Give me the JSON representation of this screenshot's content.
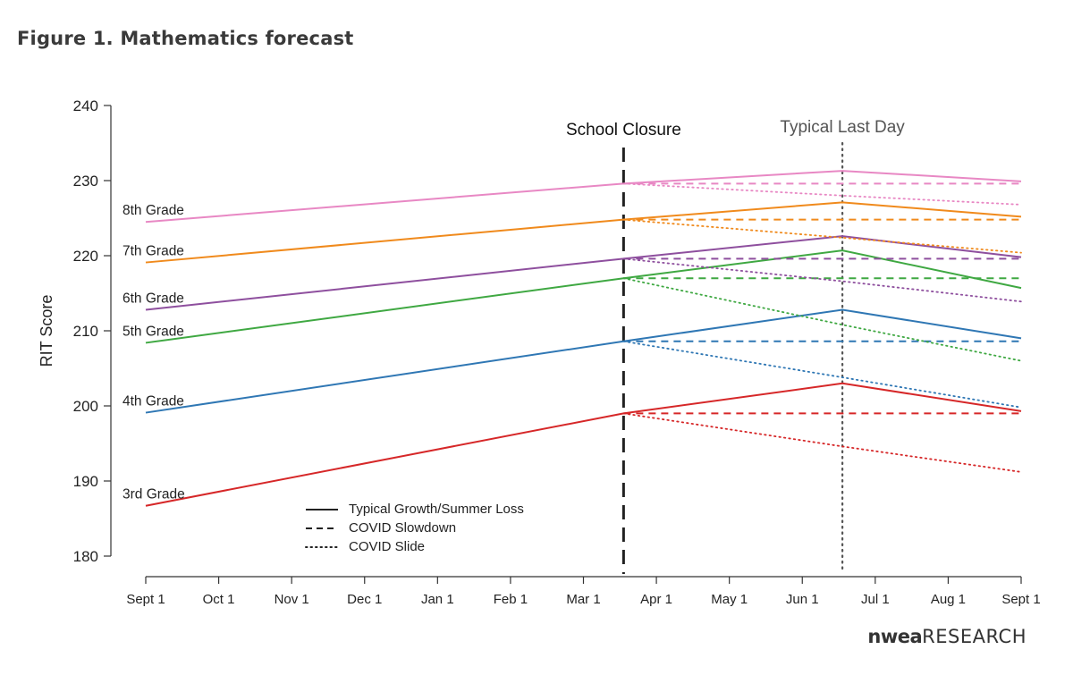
{
  "figure_title": "Figure 1. Mathematics forecast",
  "brand": {
    "logo": "nwea",
    "word": "RESEARCH"
  },
  "colors": {
    "grade_3": "#d62728",
    "grade_4": "#2f77b4",
    "grade_5": "#3fa842",
    "grade_6": "#8e4f9e",
    "grade_7": "#f08a1c",
    "grade_8": "#e888c4",
    "axis": "#333333",
    "marker": "#222222"
  },
  "legend": [
    {
      "label": "Typical Growth/Summer Loss",
      "style": "solid"
    },
    {
      "label": "COVID Slowdown",
      "style": "dashed"
    },
    {
      "label": "COVID Slide",
      "style": "dotted"
    }
  ],
  "chart_data": {
    "type": "line",
    "ylabel": "RIT Score",
    "xlabel": "",
    "ylim": [
      180,
      240
    ],
    "yticks": [
      180,
      190,
      200,
      210,
      220,
      230,
      240
    ],
    "x_categories": [
      "Sept 1",
      "Oct 1",
      "Nov 1",
      "Dec 1",
      "Jan 1",
      "Feb 1",
      "Mar 1",
      "Apr 1",
      "May 1",
      "Jun 1",
      "Jul 1",
      "Aug 1",
      "Sept 1"
    ],
    "x_domain": [
      0,
      12
    ],
    "vertical_markers": [
      {
        "label": "School Closure",
        "x": 6.55,
        "style": "dashed"
      },
      {
        "label": "Typical Last Day",
        "x": 9.55,
        "style": "dotted"
      }
    ],
    "series": [
      {
        "name": "3rd Grade",
        "color_key": "grade_3",
        "typical": [
          [
            0,
            186.7
          ],
          [
            6.55,
            199.0
          ],
          [
            9.55,
            203.0
          ],
          [
            12,
            199.3
          ]
        ],
        "slowdown": [
          [
            6.55,
            199.0
          ],
          [
            12,
            199.0
          ]
        ],
        "slide": [
          [
            6.55,
            199.0
          ],
          [
            9.55,
            194.6
          ],
          [
            12,
            191.2
          ]
        ]
      },
      {
        "name": "4th Grade",
        "color_key": "grade_4",
        "typical": [
          [
            0,
            199.1
          ],
          [
            6.55,
            208.6
          ],
          [
            9.55,
            212.8
          ],
          [
            12,
            209.0
          ]
        ],
        "slowdown": [
          [
            6.55,
            208.6
          ],
          [
            12,
            208.6
          ]
        ],
        "slide": [
          [
            6.55,
            208.6
          ],
          [
            9.55,
            203.8
          ],
          [
            12,
            199.8
          ]
        ]
      },
      {
        "name": "5th Grade",
        "color_key": "grade_5",
        "typical": [
          [
            0,
            208.4
          ],
          [
            6.55,
            217.0
          ],
          [
            9.55,
            220.7
          ],
          [
            12,
            215.7
          ]
        ],
        "slowdown": [
          [
            6.55,
            217.0
          ],
          [
            12,
            217.0
          ]
        ],
        "slide": [
          [
            6.55,
            217.0
          ],
          [
            9.55,
            210.8
          ],
          [
            12,
            206.0
          ]
        ]
      },
      {
        "name": "6th Grade",
        "color_key": "grade_6",
        "typical": [
          [
            0,
            212.8
          ],
          [
            6.55,
            219.6
          ],
          [
            9.55,
            222.6
          ],
          [
            12,
            219.8
          ]
        ],
        "slowdown": [
          [
            6.55,
            219.6
          ],
          [
            12,
            219.6
          ]
        ],
        "slide": [
          [
            6.55,
            219.6
          ],
          [
            9.55,
            216.6
          ],
          [
            12,
            213.9
          ]
        ]
      },
      {
        "name": "7th Grade",
        "color_key": "grade_7",
        "typical": [
          [
            0,
            219.1
          ],
          [
            6.55,
            224.8
          ],
          [
            9.55,
            227.1
          ],
          [
            12,
            225.2
          ]
        ],
        "slowdown": [
          [
            6.55,
            224.8
          ],
          [
            12,
            224.8
          ]
        ],
        "slide": [
          [
            6.55,
            224.8
          ],
          [
            9.55,
            222.4
          ],
          [
            12,
            220.4
          ]
        ]
      },
      {
        "name": "8th Grade",
        "color_key": "grade_8",
        "typical": [
          [
            0,
            224.5
          ],
          [
            6.55,
            229.6
          ],
          [
            9.55,
            231.3
          ],
          [
            12,
            229.9
          ]
        ],
        "slowdown": [
          [
            6.55,
            229.6
          ],
          [
            12,
            229.6
          ]
        ],
        "slide": [
          [
            6.55,
            229.6
          ],
          [
            9.55,
            228.0
          ],
          [
            12,
            226.8
          ]
        ]
      }
    ]
  }
}
